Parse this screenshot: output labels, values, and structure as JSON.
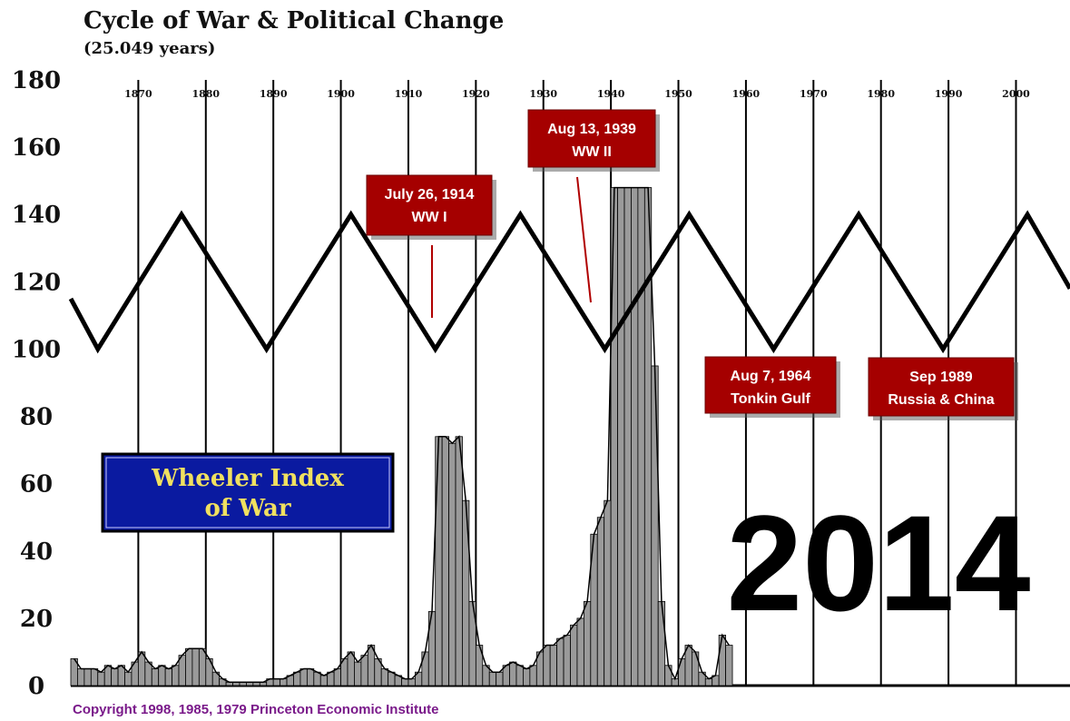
{
  "chart_data": {
    "type": "bar",
    "title": "Cycle of War & Political Change",
    "subtitle": "(25.049 years)",
    "copyright": "Copyright 1998, 1985, 1979 Princeton Economic Institute",
    "big_label": "2014",
    "legend_box": {
      "line1": "Wheeler Index",
      "line2": "of War",
      "fill": "#0a1aa0"
    },
    "ylim": [
      0,
      180
    ],
    "yticks": [
      0,
      20,
      40,
      60,
      80,
      100,
      120,
      140,
      160,
      180
    ],
    "xlim": [
      1860,
      2008
    ],
    "xticks": [
      "1870",
      "1880",
      "1890",
      "1900",
      "1910",
      "1920",
      "1930",
      "1940",
      "1950",
      "1960",
      "1970",
      "1980",
      "1990",
      "2000"
    ],
    "xtick_years": [
      1870,
      1880,
      1890,
      1900,
      1910,
      1920,
      1930,
      1940,
      1950,
      1960,
      1970,
      1980,
      1990,
      2000
    ],
    "cycle_line": {
      "x": [
        1860,
        1864.0,
        1876.4,
        1889.0,
        1901.5,
        1914.0,
        1926.6,
        1939.1,
        1951.6,
        1964.1,
        1976.7,
        1989.2,
        2001.7,
        2008
      ],
      "y": [
        115,
        100,
        140,
        100,
        140,
        100,
        140,
        100,
        140,
        100,
        140,
        100,
        140,
        118
      ]
    },
    "wheeler_index": {
      "x": [
        1860,
        1861,
        1862,
        1863,
        1864,
        1865,
        1866,
        1867,
        1868,
        1869,
        1870,
        1871,
        1872,
        1873,
        1874,
        1875,
        1876,
        1877,
        1878,
        1879,
        1880,
        1881,
        1882,
        1883,
        1884,
        1885,
        1886,
        1887,
        1888,
        1889,
        1890,
        1891,
        1892,
        1893,
        1894,
        1895,
        1896,
        1897,
        1898,
        1899,
        1900,
        1901,
        1902,
        1903,
        1904,
        1905,
        1906,
        1907,
        1908,
        1909,
        1910,
        1911,
        1912,
        1913,
        1914,
        1915,
        1916,
        1917,
        1918,
        1919,
        1920,
        1921,
        1922,
        1923,
        1924,
        1925,
        1926,
        1927,
        1928,
        1929,
        1930,
        1931,
        1932,
        1933,
        1934,
        1935,
        1936,
        1937,
        1938,
        1939,
        1940,
        1941,
        1942,
        1943,
        1944,
        1945,
        1946,
        1947,
        1948,
        1949,
        1950,
        1951,
        1952,
        1953,
        1954,
        1955,
        1956,
        1957
      ],
      "y": [
        8,
        5,
        5,
        5,
        4,
        6,
        5,
        6,
        4,
        7,
        10,
        7,
        5,
        6,
        5,
        6,
        9,
        11,
        11,
        11,
        8,
        4,
        2,
        1,
        1,
        1,
        1,
        1,
        1,
        2,
        2,
        2,
        3,
        4,
        5,
        5,
        4,
        3,
        4,
        5,
        8,
        10,
        7,
        9,
        12,
        8,
        5,
        4,
        3,
        2,
        2,
        4,
        10,
        22,
        74,
        74,
        72,
        74,
        55,
        25,
        12,
        6,
        4,
        4,
        6,
        7,
        6,
        5,
        6,
        10,
        12,
        12,
        14,
        15,
        18,
        20,
        25,
        45,
        50,
        55,
        148,
        148,
        148,
        148,
        148,
        148,
        95,
        25,
        6,
        2,
        8,
        12,
        10,
        4,
        2,
        3,
        15,
        12
      ]
    },
    "annotations": [
      {
        "line1": "July 26, 1914",
        "line2": "WW I",
        "year": 1914.6
      },
      {
        "line1": "Aug 13, 1939",
        "line2": "WW II",
        "year": 1939.6
      },
      {
        "line1": "Aug 7, 1964",
        "line2": "Tonkin Gulf",
        "year": 1964.6
      },
      {
        "line1": "Sep 1989",
        "line2": "Russia & China",
        "year": 1989.7
      }
    ],
    "colors": {
      "bars": "#9a9a9a",
      "bar_edge": "#000000",
      "cycle": "#000000",
      "annotation_bg": "#a50000",
      "copyright": "#7a1a8a"
    }
  }
}
